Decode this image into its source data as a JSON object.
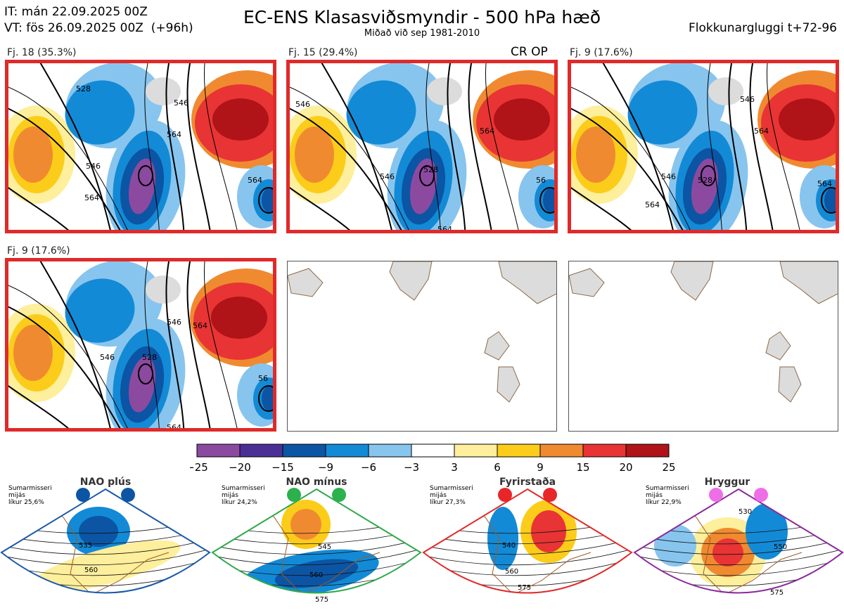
{
  "header": {
    "it_line": "IT: mán 22.09.2025 00Z",
    "vt_line": "VT: fös 26.09.2025 00Z  (+96h)",
    "title": "EC-ENS Klasasviðsmyndir - 500 hPa hæð",
    "subtitle": "Miðað við sep 1981-2010",
    "window": "Flokkunargluggi t+72-96"
  },
  "panels": [
    {
      "label": "Fj. 18 (35.3%)",
      "selected": true,
      "badge": ""
    },
    {
      "label": "Fj. 15 (29.4%)",
      "selected": true,
      "badge": "CR OP"
    },
    {
      "label": "Fj. 9 (17.6%)",
      "selected": true,
      "badge": ""
    },
    {
      "label": "Fj. 9 (17.6%)",
      "selected": true,
      "badge": ""
    },
    {
      "label": "",
      "selected": false,
      "badge": ""
    },
    {
      "label": "",
      "selected": false,
      "badge": ""
    }
  ],
  "contour_labels": {
    "p1": [
      "528",
      "546",
      "564",
      "546",
      "564",
      "564"
    ],
    "p2": [
      "546",
      "564",
      "528",
      "546",
      "564",
      "56"
    ],
    "p3": [
      "546",
      "564",
      "546",
      "528",
      "564",
      "564"
    ],
    "p4": [
      "546",
      "564",
      "546",
      "528",
      "564",
      "56"
    ]
  },
  "colorbar": {
    "colors": [
      "#8b4aa0",
      "#4b2f95",
      "#0b55a4",
      "#138ad6",
      "#87c5ee",
      "#ffffff",
      "#fdef9c",
      "#fbcd1a",
      "#f08a30",
      "#e83434",
      "#b01318"
    ],
    "ticks": [
      "−25",
      "−20",
      "−15",
      "−9",
      "−6",
      "−3",
      "3",
      "6",
      "9",
      "15",
      "20",
      "25"
    ]
  },
  "regimes": [
    {
      "name": "NAO plús",
      "season": "Sumarmisseri",
      "mid": "mijás",
      "freq": "líkur 25,6%",
      "border": "#1a5aa8",
      "dot": "#0b55a4",
      "labels": [
        "535",
        "560"
      ]
    },
    {
      "name": "NAO mínus",
      "season": "Sumarmisseri",
      "mid": "mijás",
      "freq": "líkur 24,2%",
      "border": "#2ea84a",
      "dot": "#2bb14d",
      "labels": [
        "545",
        "560",
        "575"
      ]
    },
    {
      "name": "Fyrirstaða",
      "season": "Sumarmisseri",
      "mid": "mijás",
      "freq": "líkur 27,3%",
      "border": "#e02a2a",
      "dot": "#e8262a",
      "labels": [
        "540",
        "560",
        "575"
      ]
    },
    {
      "name": "Hryggur",
      "season": "Sumarmisseri",
      "mid": "mijás",
      "freq": "líkur 22,9%",
      "border": "#8a2a9a",
      "dot": "#ee6ee8",
      "labels": [
        "530",
        "550",
        "575"
      ]
    }
  ]
}
